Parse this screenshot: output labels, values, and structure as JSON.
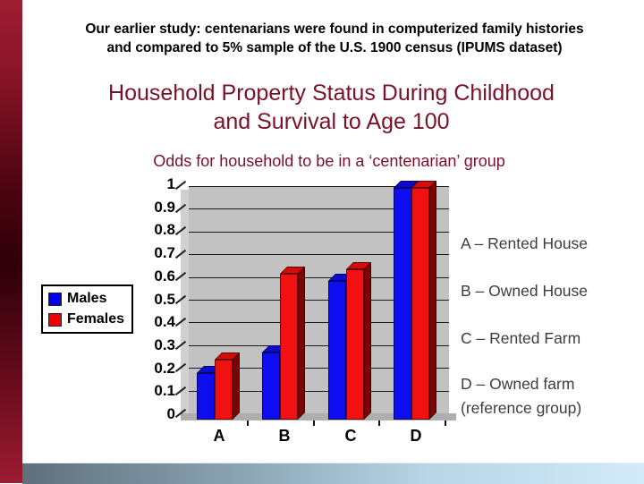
{
  "header": {
    "line1": "Our earlier study: centenarians were found in computerized family histories",
    "line2": "and compared to 5% sample of the U.S. 1900 census (IPUMS dataset)"
  },
  "title": {
    "line1": "Household Property Status During Childhood",
    "line2": "and Survival to Age 100"
  },
  "subtitle": "Odds for household to be in a ‘centenarian’ group",
  "legend": {
    "items": [
      {
        "label": "Males",
        "color": "#0000f0"
      },
      {
        "label": "Females",
        "color": "#f00000"
      }
    ]
  },
  "side_labels": [
    {
      "line1": "A – Rented House",
      "line2": ""
    },
    {
      "line1": "B – Owned House",
      "line2": ""
    },
    {
      "line1": "C – Rented Farm",
      "line2": ""
    },
    {
      "line1": "D – Owned farm",
      "line2": "(reference group)"
    }
  ],
  "colors": {
    "title_text": "#7a1129",
    "side_label_text": "#3d3d3d",
    "accent_bar": "#8c1529",
    "plot_background": "#c2c2c2"
  },
  "chart_data": {
    "type": "bar",
    "title": "Odds for household to be in a ‘centenarian’ group",
    "xlabel": "",
    "ylabel": "",
    "ylim": [
      0,
      1
    ],
    "grid": true,
    "style": "3d-column",
    "legend_position": "left",
    "categories": [
      "A",
      "B",
      "C",
      "D"
    ],
    "y_tick_labels": [
      "0",
      "0.1",
      "0.2",
      "0.3",
      "0.4",
      "0.5",
      "0.6",
      "0.7",
      "0.8",
      "0.9",
      "1"
    ],
    "series": [
      {
        "name": "Males",
        "color": "#0d0df0",
        "top": "#0b0bcf",
        "side": "#06066e",
        "values": [
          0.2,
          0.29,
          0.6,
          1.0
        ]
      },
      {
        "name": "Females",
        "color": "#f21111",
        "top": "#d40c0c",
        "side": "#7d0202",
        "values": [
          0.26,
          0.63,
          0.65,
          1.0
        ]
      }
    ],
    "category_meanings": [
      "A – Rented House",
      "B – Owned House",
      "C – Rented Farm",
      "D – Owned farm (reference group)"
    ]
  }
}
